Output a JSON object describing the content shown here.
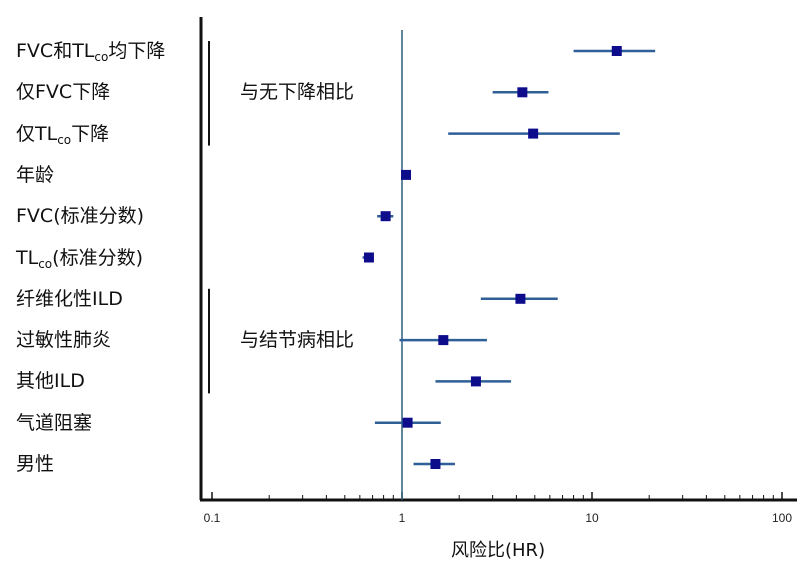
{
  "chart_data": {
    "type": "forest",
    "xlabel": "风险比(HR)",
    "xscale": "log",
    "xlim": [
      0.09,
      130
    ],
    "ref_line": 1,
    "x_ticks": [
      {
        "value": 0.1,
        "label": "0.1"
      },
      {
        "value": 1,
        "label": "1"
      },
      {
        "value": 10,
        "label": "10"
      },
      {
        "value": 100,
        "label": "100"
      }
    ],
    "groups": [
      {
        "label": "与无下降相比",
        "rows": [
          0,
          2
        ]
      },
      {
        "label": "与结节病相比",
        "rows": [
          6,
          8
        ]
      }
    ],
    "rows": [
      {
        "label": "FVC和TL",
        "sub": "co",
        "suffix": "均下降",
        "hr": 13.5,
        "lo": 8.0,
        "hi": 21.5
      },
      {
        "label": "仅FVC下降",
        "sub": "",
        "suffix": "",
        "hr": 4.3,
        "lo": 3.0,
        "hi": 5.9
      },
      {
        "label": "仅TL",
        "sub": "co",
        "suffix": "下降",
        "hr": 4.9,
        "lo": 1.75,
        "hi": 14.0
      },
      {
        "label": "年龄",
        "sub": "",
        "suffix": "",
        "hr": 1.05,
        "lo": 1.02,
        "hi": 1.08
      },
      {
        "label": "FVC(标准分数)",
        "sub": "",
        "suffix": "",
        "hr": 0.82,
        "lo": 0.74,
        "hi": 0.9
      },
      {
        "label": "TL",
        "sub": "co",
        "suffix": "(标准分数)",
        "hr": 0.67,
        "lo": 0.62,
        "hi": 0.71
      },
      {
        "label": "纤维化性ILD",
        "sub": "",
        "suffix": "",
        "hr": 4.2,
        "lo": 2.6,
        "hi": 6.6
      },
      {
        "label": "过敏性肺炎",
        "sub": "",
        "suffix": "",
        "hr": 1.65,
        "lo": 0.97,
        "hi": 2.8
      },
      {
        "label": "其他ILD",
        "sub": "",
        "suffix": "",
        "hr": 2.45,
        "lo": 1.5,
        "hi": 3.75
      },
      {
        "label": "气道阻塞",
        "sub": "",
        "suffix": "",
        "hr": 1.07,
        "lo": 0.72,
        "hi": 1.6
      },
      {
        "label": "男性",
        "sub": "",
        "suffix": "",
        "hr": 1.5,
        "lo": 1.15,
        "hi": 1.9
      }
    ],
    "colors": {
      "ci": "#2e5f96",
      "marker": "#0d0d8c",
      "ref": "#2e5f7e",
      "axis": "#111111"
    }
  }
}
